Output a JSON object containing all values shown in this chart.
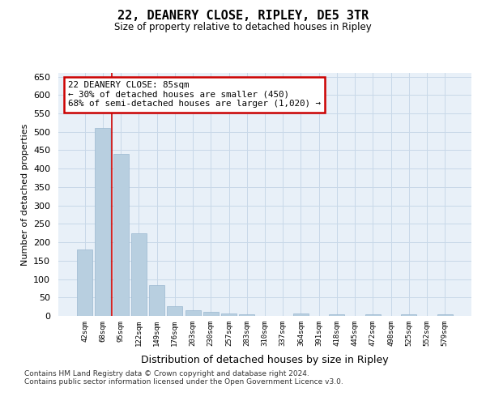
{
  "title": "22, DEANERY CLOSE, RIPLEY, DE5 3TR",
  "subtitle": "Size of property relative to detached houses in Ripley",
  "xlabel": "Distribution of detached houses by size in Ripley",
  "ylabel": "Number of detached properties",
  "categories": [
    "42sqm",
    "68sqm",
    "95sqm",
    "122sqm",
    "149sqm",
    "176sqm",
    "203sqm",
    "230sqm",
    "257sqm",
    "283sqm",
    "310sqm",
    "337sqm",
    "364sqm",
    "391sqm",
    "418sqm",
    "445sqm",
    "472sqm",
    "498sqm",
    "525sqm",
    "552sqm",
    "579sqm"
  ],
  "values": [
    180,
    510,
    440,
    225,
    83,
    27,
    15,
    10,
    7,
    5,
    0,
    0,
    7,
    0,
    5,
    0,
    5,
    0,
    5,
    0,
    5
  ],
  "bar_color": "#b8cfe0",
  "bar_edge_color": "#9ab8d0",
  "grid_color": "#c8d8e8",
  "background_color": "#e8f0f8",
  "red_line_x": 1.5,
  "annotation_text": "22 DEANERY CLOSE: 85sqm\n← 30% of detached houses are smaller (450)\n68% of semi-detached houses are larger (1,020) →",
  "annotation_box_color": "#ffffff",
  "annotation_box_edge": "#cc0000",
  "footnote_line1": "Contains HM Land Registry data © Crown copyright and database right 2024.",
  "footnote_line2": "Contains public sector information licensed under the Open Government Licence v3.0.",
  "ylim": [
    0,
    660
  ],
  "yticks": [
    0,
    50,
    100,
    150,
    200,
    250,
    300,
    350,
    400,
    450,
    500,
    550,
    600,
    650
  ]
}
